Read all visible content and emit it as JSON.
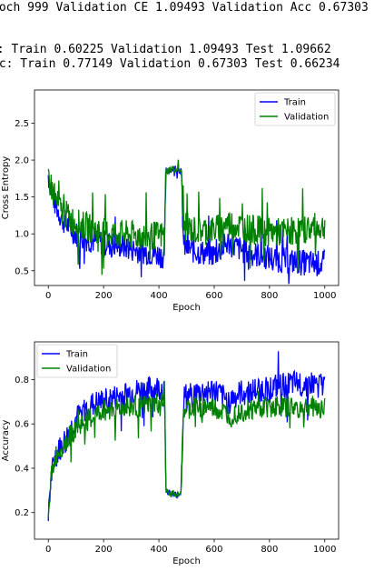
{
  "log": {
    "line1": "poch 999 Validation CE 1.09493 Validation Acc 0.67303",
    "line2": "E: Train 0.60225 Validation 1.09493 Test 1.09662",
    "line3": "cc: Train 0.77149 Validation 0.67303 Test 0.66234"
  },
  "colors": {
    "train": "#0000ff",
    "validation": "#008000"
  },
  "chart_data": [
    {
      "type": "line",
      "xlabel": "Epoch",
      "ylabel": "Cross Entropy",
      "xlim": [
        -50,
        1050
      ],
      "ylim": [
        0.3,
        2.95
      ],
      "xticks": [
        0,
        200,
        400,
        600,
        800,
        1000
      ],
      "yticks": [
        0.5,
        1.0,
        1.5,
        2.0,
        2.5
      ],
      "ytick_labels": [
        "0.5",
        "1.0",
        "1.5",
        "2.0",
        "2.5"
      ],
      "legend": "top-right",
      "grid": false,
      "series": [
        {
          "name": "Train",
          "color": "#0000ff",
          "x": [
            0,
            10,
            25,
            50,
            100,
            150,
            200,
            250,
            300,
            350,
            400,
            420,
            425,
            450,
            470,
            480,
            490,
            520,
            550,
            600,
            650,
            700,
            750,
            800,
            850,
            900,
            950,
            1000
          ],
          "y": [
            1.8,
            1.6,
            1.4,
            1.2,
            1.0,
            0.92,
            0.88,
            0.85,
            0.8,
            0.76,
            0.72,
            0.7,
            1.85,
            1.88,
            1.88,
            1.85,
            0.82,
            0.78,
            0.75,
            0.72,
            0.88,
            0.78,
            0.72,
            0.68,
            0.64,
            0.62,
            0.6,
            0.6
          ]
        },
        {
          "name": "Validation",
          "color": "#008000",
          "x": [
            0,
            10,
            25,
            50,
            100,
            150,
            200,
            250,
            300,
            350,
            400,
            420,
            425,
            450,
            470,
            480,
            490,
            520,
            550,
            600,
            650,
            700,
            750,
            800,
            850,
            900,
            950,
            1000
          ],
          "y": [
            1.8,
            1.65,
            1.45,
            1.3,
            1.15,
            1.08,
            1.02,
            1.0,
            0.98,
            0.97,
            0.98,
            0.98,
            1.85,
            1.88,
            1.88,
            1.85,
            1.1,
            1.05,
            1.05,
            1.05,
            1.15,
            1.1,
            1.05,
            1.02,
            1.02,
            1.05,
            1.08,
            1.09
          ]
        }
      ]
    },
    {
      "type": "line",
      "xlabel": "Epoch",
      "ylabel": "Accuracy",
      "xlim": [
        -50,
        1050
      ],
      "ylim": [
        0.08,
        0.97
      ],
      "xticks": [
        0,
        200,
        400,
        600,
        800,
        1000
      ],
      "yticks": [
        0.2,
        0.4,
        0.6,
        0.8
      ],
      "ytick_labels": [
        "0.2",
        "0.4",
        "0.6",
        "0.8"
      ],
      "legend": "top-left",
      "grid": false,
      "series": [
        {
          "name": "Train",
          "color": "#0000ff",
          "x": [
            0,
            10,
            25,
            50,
            100,
            150,
            200,
            250,
            300,
            350,
            400,
            420,
            425,
            450,
            470,
            480,
            490,
            520,
            550,
            600,
            650,
            700,
            750,
            800,
            850,
            900,
            950,
            1000
          ],
          "y": [
            0.22,
            0.35,
            0.45,
            0.5,
            0.62,
            0.68,
            0.7,
            0.72,
            0.74,
            0.75,
            0.76,
            0.76,
            0.3,
            0.28,
            0.28,
            0.3,
            0.72,
            0.73,
            0.74,
            0.75,
            0.7,
            0.74,
            0.75,
            0.76,
            0.77,
            0.78,
            0.78,
            0.77
          ]
        },
        {
          "name": "Validation",
          "color": "#008000",
          "x": [
            0,
            10,
            25,
            50,
            100,
            150,
            200,
            250,
            300,
            350,
            400,
            420,
            425,
            450,
            470,
            480,
            490,
            520,
            550,
            600,
            650,
            700,
            750,
            800,
            850,
            900,
            950,
            1000
          ],
          "y": [
            0.22,
            0.35,
            0.45,
            0.5,
            0.58,
            0.62,
            0.66,
            0.67,
            0.68,
            0.68,
            0.69,
            0.69,
            0.3,
            0.28,
            0.28,
            0.3,
            0.66,
            0.67,
            0.68,
            0.67,
            0.64,
            0.66,
            0.67,
            0.68,
            0.68,
            0.67,
            0.68,
            0.67
          ]
        }
      ]
    }
  ]
}
